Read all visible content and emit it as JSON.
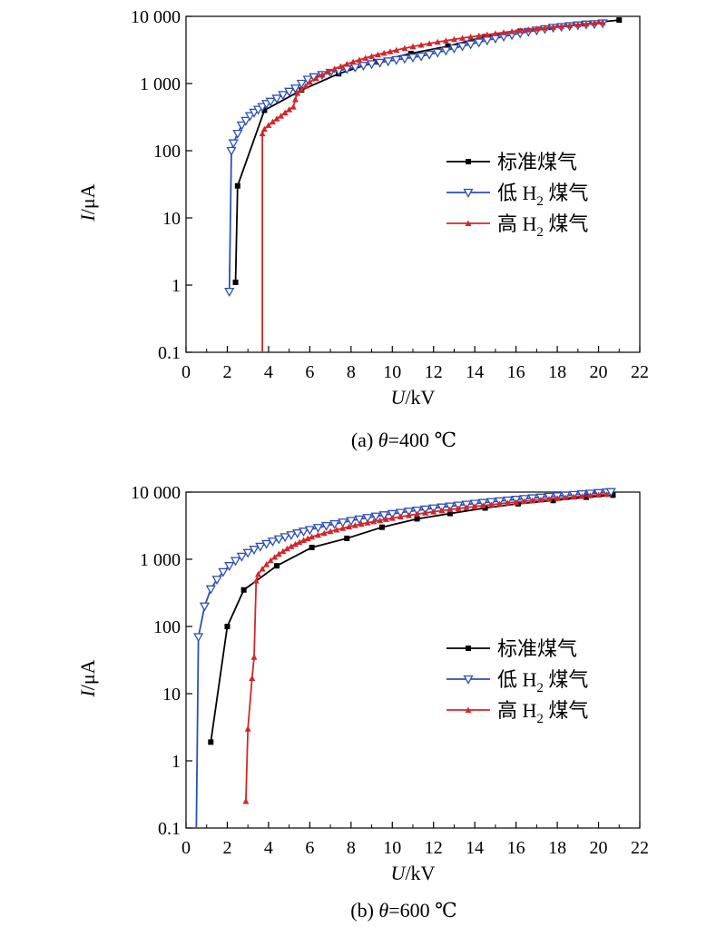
{
  "chart_data": [
    {
      "type": "line",
      "panel": "a",
      "caption": {
        "prefix": "(a) ",
        "var": "θ",
        "suffix": "=400 ℃"
      },
      "xlabel": {
        "var": "U",
        "unit": "/kV"
      },
      "ylabel": {
        "var": "I",
        "unit": "/μA"
      },
      "xlim": [
        0,
        22
      ],
      "ylim": [
        0.1,
        10000
      ],
      "yscale": "log",
      "grid": false,
      "legend_position": "center-right",
      "x_ticks": [
        0,
        2,
        4,
        6,
        8,
        10,
        12,
        14,
        16,
        18,
        20,
        22
      ],
      "x_tick_labels": [
        "0",
        "2",
        "4",
        "6",
        "8",
        "10",
        "12",
        "14",
        "16",
        "18",
        "20",
        "22"
      ],
      "y_ticks": [
        0.1,
        1,
        10,
        100,
        1000,
        10000
      ],
      "y_tick_labels": [
        "0.1",
        "1",
        "10",
        "100",
        "1 000",
        "10 000"
      ],
      "series": [
        {
          "name": "标准煤气",
          "sub": "",
          "name_after": "",
          "color": "#000000",
          "marker": "square",
          "x": [
            2.4,
            2.5,
            3.8,
            5.6,
            7.4,
            9.2,
            10.9,
            12.7,
            14.5,
            16.2,
            17.7,
            19.3,
            21.0
          ],
          "y": [
            1.1,
            30,
            400,
            800,
            1400,
            2100,
            2800,
            3600,
            5000,
            6000,
            6900,
            7800,
            8800
          ]
        },
        {
          "name": "低 H",
          "sub": "2",
          "name_after": " 煤气",
          "color": "#2e4fb5",
          "marker": "triangle-down",
          "x": [
            2.1,
            2.2,
            2.3,
            2.5,
            2.7,
            2.9,
            3.1,
            3.3,
            3.5,
            3.7,
            3.9,
            4.1,
            4.4,
            4.7,
            5.0,
            5.3,
            5.6,
            5.9,
            6.2,
            6.6,
            7.0,
            7.4,
            7.8,
            8.2,
            8.6,
            9.0,
            9.4,
            9.8,
            10.2,
            10.6,
            11.0,
            11.4,
            11.8,
            12.2,
            12.6,
            13.0,
            13.4,
            13.8,
            14.2,
            14.6,
            15.0,
            15.4,
            15.8,
            16.2,
            16.6,
            17.0,
            17.4,
            17.8,
            18.2,
            18.6,
            19.0,
            19.4,
            19.8,
            20.2
          ],
          "y": [
            0.8,
            100,
            130,
            180,
            240,
            280,
            330,
            370,
            410,
            450,
            500,
            540,
            600,
            680,
            760,
            850,
            1000,
            1150,
            1250,
            1350,
            1450,
            1550,
            1650,
            1750,
            1850,
            1950,
            2050,
            2150,
            2250,
            2350,
            2450,
            2550,
            2700,
            2900,
            3100,
            3350,
            3600,
            3850,
            4100,
            4400,
            4700,
            5000,
            5300,
            5600,
            5900,
            6200,
            6500,
            6800,
            7000,
            7200,
            7400,
            7600,
            7700,
            7900
          ]
        },
        {
          "name": "高 H",
          "sub": "2",
          "name_after": " 煤气",
          "color": "#d3262b",
          "marker": "triangle-up",
          "x": [
            3.7,
            3.7,
            3.8,
            4.0,
            4.2,
            4.4,
            4.6,
            4.8,
            5.0,
            5.2,
            5.3,
            5.4,
            5.6,
            5.8,
            6.0,
            6.3,
            6.6,
            6.9,
            7.2,
            7.5,
            7.8,
            8.1,
            8.4,
            8.7,
            9.0,
            9.3,
            9.6,
            9.9,
            10.2,
            10.6,
            11.0,
            11.4,
            11.8,
            12.2,
            12.6,
            13.0,
            13.4,
            13.8,
            14.2,
            14.6,
            15.0,
            15.4,
            15.8,
            16.2,
            16.6,
            17.0,
            17.4,
            17.8,
            18.2,
            18.6,
            19.0,
            19.4,
            19.8,
            20.2
          ],
          "y": [
            0.1,
            180,
            210,
            240,
            270,
            300,
            330,
            370,
            410,
            450,
            580,
            720,
            820,
            920,
            1050,
            1200,
            1350,
            1500,
            1650,
            1800,
            1950,
            2100,
            2250,
            2400,
            2550,
            2700,
            2850,
            3000,
            3150,
            3350,
            3550,
            3750,
            3950,
            4150,
            4350,
            4550,
            4750,
            4950,
            5150,
            5350,
            5550,
            5750,
            5950,
            6150,
            6350,
            6550,
            6750,
            6950,
            7150,
            7350,
            7550,
            7750,
            7950,
            8150
          ]
        }
      ]
    },
    {
      "type": "line",
      "panel": "b",
      "caption": {
        "prefix": "(b) ",
        "var": "θ",
        "suffix": "=600 ℃"
      },
      "xlabel": {
        "var": "U",
        "unit": "/kV"
      },
      "ylabel": {
        "var": "I",
        "unit": "/μA"
      },
      "xlim": [
        0,
        22
      ],
      "ylim": [
        0.1,
        10000
      ],
      "yscale": "log",
      "grid": false,
      "legend_position": "center-right",
      "x_ticks": [
        0,
        2,
        4,
        6,
        8,
        10,
        12,
        14,
        16,
        18,
        20,
        22
      ],
      "x_tick_labels": [
        "0",
        "2",
        "4",
        "6",
        "8",
        "10",
        "12",
        "14",
        "16",
        "18",
        "20",
        "22"
      ],
      "y_ticks": [
        0.1,
        1,
        10,
        100,
        1000,
        10000
      ],
      "y_tick_labels": [
        "0.1",
        "1",
        "10",
        "100",
        "1 000",
        "10 000"
      ],
      "series": [
        {
          "name": "标准煤气",
          "sub": "",
          "name_after": "",
          "color": "#000000",
          "marker": "square",
          "x": [
            1.2,
            2.0,
            2.8,
            4.4,
            6.1,
            7.8,
            9.5,
            11.2,
            12.8,
            14.5,
            16.1,
            17.8,
            19.4,
            20.7
          ],
          "y": [
            1.9,
            100,
            350,
            800,
            1500,
            2050,
            3000,
            4000,
            4800,
            5800,
            6700,
            7500,
            8400,
            9000
          ]
        },
        {
          "name": "低 H",
          "sub": "2",
          "name_after": " 煤气",
          "color": "#2e4fb5",
          "marker": "triangle-down",
          "x": [
            0.5,
            0.6,
            0.9,
            1.2,
            1.5,
            1.8,
            2.1,
            2.4,
            2.7,
            3.0,
            3.3,
            3.6,
            3.9,
            4.2,
            4.5,
            4.8,
            5.1,
            5.4,
            5.7,
            6.0,
            6.4,
            6.8,
            7.2,
            7.6,
            8.0,
            8.4,
            8.8,
            9.2,
            9.6,
            10.0,
            10.4,
            10.8,
            11.2,
            11.6,
            12.0,
            12.4,
            12.8,
            13.2,
            13.6,
            14.0,
            14.4,
            14.8,
            15.2,
            15.6,
            16.0,
            16.4,
            16.8,
            17.2,
            17.6,
            18.0,
            18.4,
            18.8,
            19.2,
            19.6,
            20.0,
            20.4,
            20.6
          ],
          "y": [
            0.1,
            70,
            200,
            360,
            500,
            650,
            800,
            950,
            1100,
            1250,
            1400,
            1550,
            1700,
            1850,
            2000,
            2150,
            2300,
            2450,
            2600,
            2750,
            2950,
            3150,
            3350,
            3550,
            3750,
            3950,
            4150,
            4350,
            4550,
            4750,
            4950,
            5150,
            5350,
            5550,
            5750,
            5950,
            6150,
            6350,
            6550,
            6750,
            6950,
            7150,
            7350,
            7550,
            7750,
            7950,
            8150,
            8350,
            8550,
            8750,
            8950,
            9150,
            9350,
            9550,
            9750,
            9950,
            10100
          ]
        },
        {
          "name": "高 H",
          "sub": "2",
          "name_after": " 煤气",
          "color": "#d3262b",
          "marker": "triangle-up",
          "x": [
            2.9,
            3.0,
            3.2,
            3.3,
            3.4,
            3.5,
            3.7,
            3.9,
            4.1,
            4.3,
            4.5,
            4.7,
            4.9,
            5.1,
            5.3,
            5.5,
            5.7,
            5.9,
            6.1,
            6.4,
            6.7,
            7.0,
            7.3,
            7.6,
            7.9,
            8.2,
            8.5,
            8.8,
            9.1,
            9.4,
            9.7,
            10.0,
            10.4,
            10.8,
            11.2,
            11.6,
            12.0,
            12.4,
            12.8,
            13.2,
            13.6,
            14.0,
            14.4,
            14.8,
            15.2,
            15.6,
            16.0,
            16.4,
            16.8,
            17.2,
            17.6,
            18.0,
            18.4,
            18.8,
            19.2,
            19.6,
            20.0,
            20.4
          ],
          "y": [
            0.25,
            3,
            17,
            35,
            480,
            600,
            720,
            840,
            960,
            1080,
            1200,
            1320,
            1440,
            1560,
            1680,
            1800,
            1920,
            2040,
            2160,
            2300,
            2450,
            2600,
            2750,
            2900,
            3050,
            3200,
            3350,
            3500,
            3650,
            3800,
            3950,
            4100,
            4300,
            4500,
            4700,
            4900,
            5100,
            5300,
            5500,
            5700,
            5900,
            6100,
            6300,
            6500,
            6700,
            6900,
            7100,
            7300,
            7500,
            7700,
            7900,
            8100,
            8300,
            8500,
            8700,
            8900,
            9100,
            9300
          ]
        }
      ]
    }
  ]
}
